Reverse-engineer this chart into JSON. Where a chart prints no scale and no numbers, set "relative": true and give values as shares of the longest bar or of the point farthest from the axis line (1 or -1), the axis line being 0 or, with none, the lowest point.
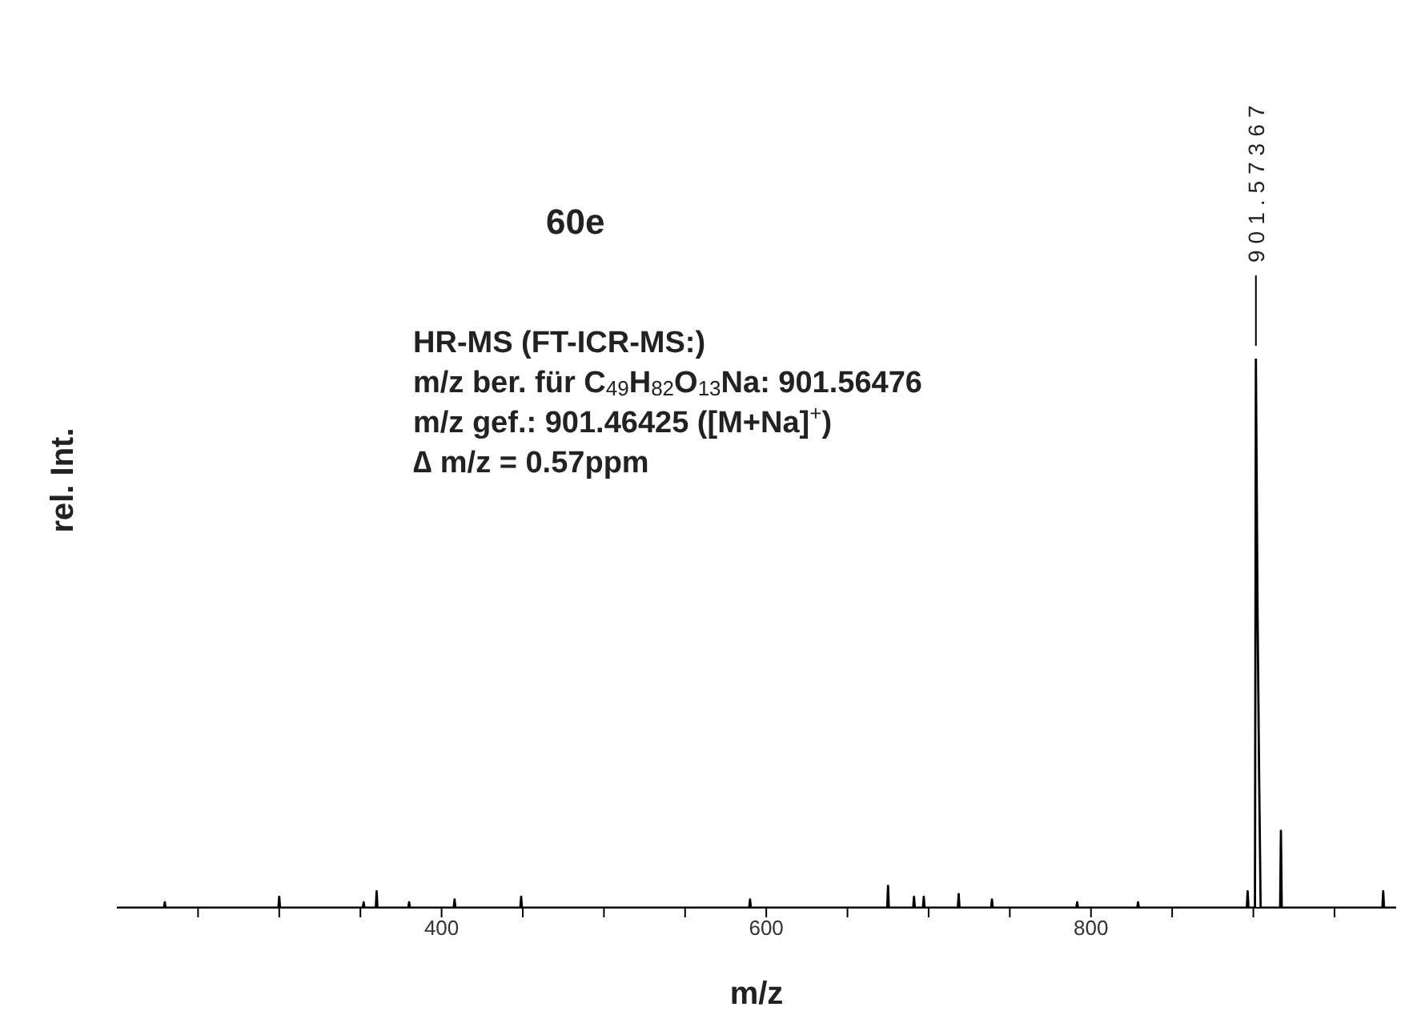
{
  "chart_data": {
    "type": "line",
    "relative": true,
    "xlabel": "m/z",
    "ylabel": "rel. Int.",
    "marker": "none",
    "line_style": "solid",
    "xlim": [
      200,
      988
    ],
    "xticks": [
      {
        "value": 250,
        "label": null
      },
      {
        "value": 300,
        "label": null
      },
      {
        "value": 350,
        "label": null
      },
      400,
      {
        "value": 450,
        "label": null
      },
      {
        "value": 500,
        "label": null
      },
      {
        "value": 550,
        "label": null
      },
      600,
      {
        "value": 650,
        "label": null
      },
      {
        "value": 700,
        "label": null
      },
      {
        "value": 750,
        "label": null
      },
      800,
      {
        "value": 850,
        "label": null
      },
      {
        "value": 900,
        "label": null
      },
      {
        "value": 950,
        "label": null
      }
    ],
    "annotations": [
      "60e",
      "HR-MS (FT-ICR-MS:)",
      "m/z ber. für C$_{49}$H$_{82}$O$_{13}$Na: 901.56476",
      "m/z gef.: 901.46425 ([M+Na]$^{+}$)",
      "∆ m/z = 0.57ppm",
      {
        "text": "901.57367",
        "x": 901.57367,
        "y": 1
      }
    ],
    "series": [
      {
        "color": "#000000",
        "x": [
          200,
          229,
          229.5,
          230,
          299.5,
          300,
          300.5,
          351.5,
          352,
          352.5,
          359.5,
          360,
          360.5,
          379.5,
          380,
          380.5,
          407.5,
          408,
          408.5,
          448.5,
          449,
          449.5,
          589.5,
          590,
          590.5,
          674.5,
          675,
          675.5,
          690.5,
          691,
          691.5,
          696.5,
          697,
          697.5,
          718,
          718.5,
          719,
          738.5,
          739,
          739.5,
          791,
          791.5,
          792,
          828.5,
          829,
          829.5,
          896,
          896.5,
          897,
          901,
          901.57367,
          902.57,
          903.57,
          904.5,
          916.5,
          917,
          917.5,
          979.5,
          980,
          980.5,
          988
        ],
        "values": [
          0,
          0,
          0.01,
          0,
          0,
          0.02,
          0,
          0,
          0.01,
          0,
          0,
          0.03,
          0,
          0,
          0.01,
          0,
          0,
          0.015,
          0,
          0,
          0.02,
          0,
          0,
          0.015,
          0,
          0,
          0.04,
          0,
          0,
          0.02,
          0,
          0,
          0.02,
          0,
          0,
          0.025,
          0,
          0,
          0.015,
          0,
          0,
          0.01,
          0,
          0,
          0.01,
          0,
          0,
          0.03,
          0,
          0,
          1,
          0.55,
          0.24,
          0,
          0,
          0.14,
          0,
          0,
          0.03,
          0,
          0
        ]
      }
    ]
  }
}
